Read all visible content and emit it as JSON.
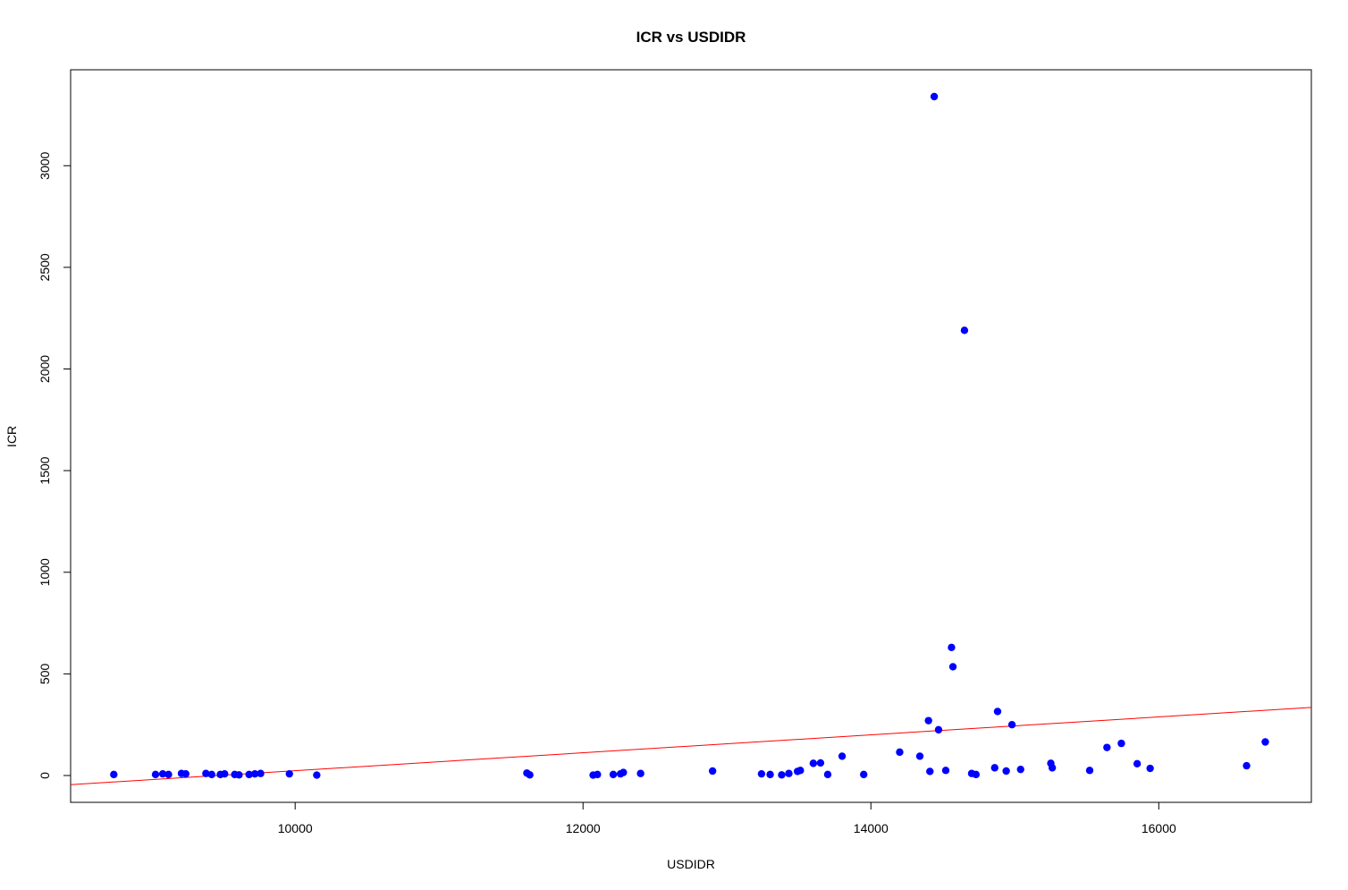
{
  "chart_data": {
    "type": "scatter",
    "title": "ICR vs USDIDR",
    "xlabel": "USDIDR",
    "ylabel": "ICR",
    "xlim": [
      8440,
      17060
    ],
    "ylim": [
      -132,
      3472
    ],
    "x_ticks": [
      10000,
      12000,
      14000,
      16000
    ],
    "x_tick_labels": [
      "10000",
      "12000",
      "14000",
      "16000"
    ],
    "y_ticks": [
      0,
      500,
      1000,
      1500,
      2000,
      2500,
      3000
    ],
    "y_tick_labels": [
      "0",
      "500",
      "1000",
      "1500",
      "2000",
      "2500",
      "3000"
    ],
    "grid": false,
    "colors": {
      "points": "#0000ff",
      "trend": "#ff0000",
      "frame": "#000000"
    },
    "trend_line": {
      "x": [
        8440,
        17060
      ],
      "y": [
        -45,
        335
      ]
    },
    "points": {
      "x": [
        8740,
        9030,
        9080,
        9120,
        9210,
        9240,
        9380,
        9420,
        9480,
        9510,
        9580,
        9610,
        9680,
        9720,
        9760,
        9960,
        10150,
        11610,
        11630,
        12070,
        12100,
        12210,
        12260,
        12280,
        12400,
        12900,
        13240,
        13300,
        13380,
        13430,
        13490,
        13510,
        13600,
        13650,
        13700,
        13800,
        13950,
        14200,
        14340,
        14400,
        14410,
        14440,
        14470,
        14520,
        14560,
        14570,
        14650,
        14700,
        14730,
        14860,
        14880,
        14940,
        14980,
        15040,
        15250,
        15260,
        15520,
        15640,
        15740,
        15850,
        15940,
        16610,
        16740
      ],
      "y": [
        5,
        5,
        8,
        5,
        10,
        8,
        10,
        5,
        5,
        8,
        5,
        3,
        5,
        8,
        10,
        8,
        2,
        12,
        3,
        2,
        5,
        5,
        8,
        15,
        10,
        22,
        8,
        5,
        3,
        10,
        20,
        25,
        60,
        62,
        5,
        95,
        5,
        115,
        95,
        270,
        20,
        3340,
        225,
        25,
        630,
        535,
        2190,
        10,
        5,
        38,
        315,
        22,
        250,
        30,
        60,
        38,
        25,
        138,
        158,
        58,
        35,
        48,
        165
      ]
    }
  }
}
